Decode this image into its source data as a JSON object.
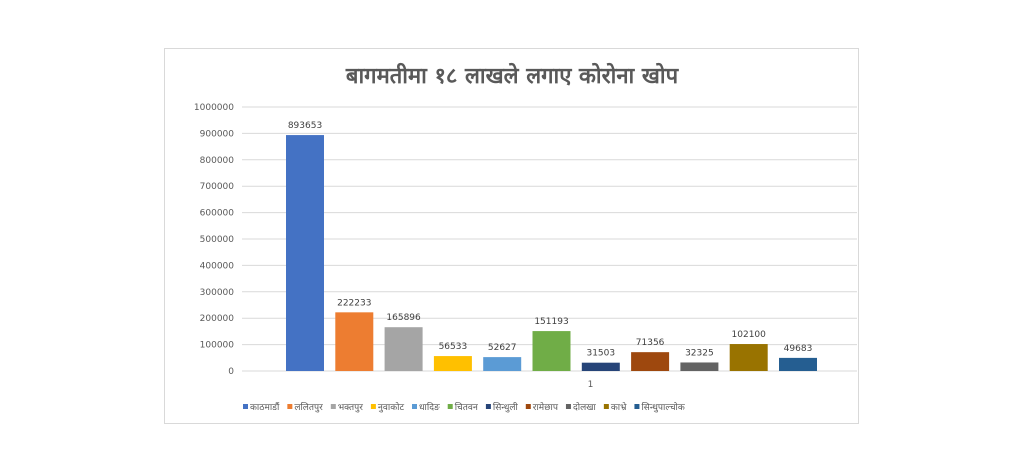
{
  "chart_data": {
    "type": "bar",
    "title": "बागमतीमा १८ लाखले लगाए कोरोना खोप",
    "xlabel": "",
    "ylabel": "",
    "categories": [
      "1"
    ],
    "ylim": [
      0,
      1000000
    ],
    "yticks": [
      "0",
      "100000",
      "200000",
      "300000",
      "400000",
      "500000",
      "600000",
      "700000",
      "800000",
      "900000",
      "1000000"
    ],
    "grid": true,
    "legend_position": "bottom",
    "series": [
      {
        "name": "काठमाडौं",
        "values": [
          893653
        ],
        "value_label": "893653",
        "color": "#4472c4"
      },
      {
        "name": "ललितपुर",
        "values": [
          222233
        ],
        "value_label": "222233",
        "color": "#ed7d31"
      },
      {
        "name": "भक्तपुर",
        "values": [
          165896
        ],
        "value_label": "165896",
        "color": "#a5a5a5"
      },
      {
        "name": "नुवाकोट",
        "values": [
          56533
        ],
        "value_label": "56533",
        "color": "#ffc000"
      },
      {
        "name": "धादिङ",
        "values": [
          52627
        ],
        "value_label": "52627",
        "color": "#5b9bd5"
      },
      {
        "name": "चितवन",
        "values": [
          151193
        ],
        "value_label": "151193",
        "color": "#70ad47"
      },
      {
        "name": "सिन्धुली",
        "values": [
          31503
        ],
        "value_label": "31503",
        "color": "#264478"
      },
      {
        "name": "रामेछाप",
        "values": [
          71356
        ],
        "value_label": "71356",
        "color": "#9e480e"
      },
      {
        "name": "दोलखा",
        "values": [
          32325
        ],
        "value_label": "32325",
        "color": "#636363"
      },
      {
        "name": "काभ्रे",
        "values": [
          102100
        ],
        "value_label": "102100",
        "color": "#997300"
      },
      {
        "name": "सिन्धुपाल्चोक",
        "values": [
          49683
        ],
        "value_label": "49683",
        "color": "#255e91"
      }
    ]
  }
}
